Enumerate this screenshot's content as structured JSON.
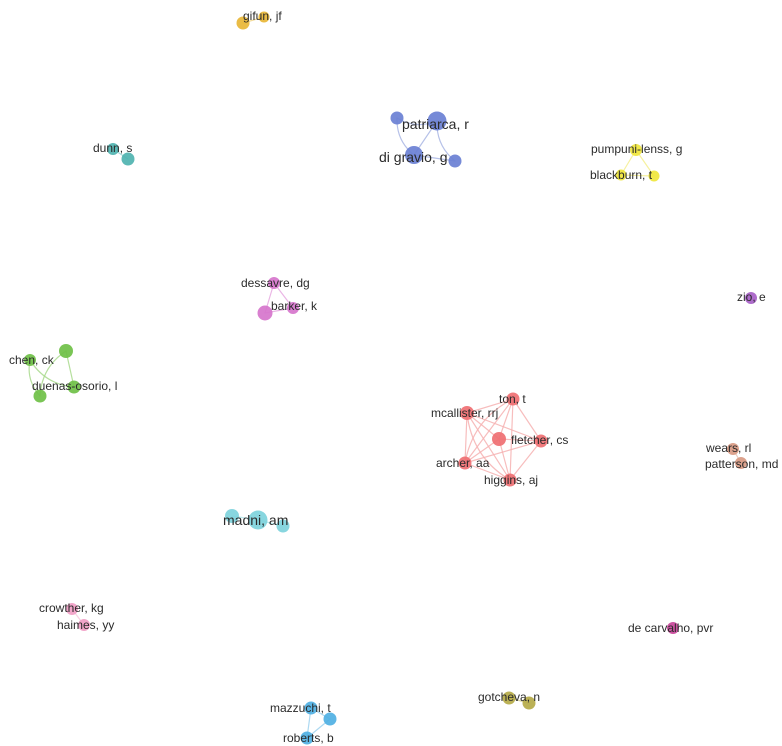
{
  "network": {
    "clusters": [
      {
        "id": "gifun",
        "color": "#e8b636",
        "edge_color": "#f1d58a",
        "labels": [
          "gifun, jf"
        ]
      },
      {
        "id": "patriarca",
        "color": "#6a80d4",
        "edge_color": "#a9b6e4",
        "labels": [
          "patriarca, r",
          "di gravio, g"
        ]
      },
      {
        "id": "dunn",
        "color": "#4fb3b0",
        "edge_color": "#9ad4d2",
        "labels": [
          "dunn, s"
        ]
      },
      {
        "id": "pumpuni",
        "color": "#f0e63c",
        "edge_color": "#f5ee8e",
        "labels": [
          "pumpuni-lenss, g",
          "blackburn, t"
        ]
      },
      {
        "id": "dessavre",
        "color": "#d675cc",
        "edge_color": "#e6a9e0",
        "labels": [
          "dessavre, dg",
          "barker, k"
        ]
      },
      {
        "id": "zio",
        "color": "#a760c7",
        "edge_color": "#c9a1dd",
        "labels": [
          "zio, e"
        ]
      },
      {
        "id": "chen",
        "color": "#6fc046",
        "edge_color": "#a8d98c",
        "labels": [
          "chen, ck",
          "duenas-osorio, l"
        ]
      },
      {
        "id": "mcallister",
        "color": "#ef6f72",
        "edge_color": "#f6b1b2",
        "labels": [
          "ton, t",
          "mcallister, rrj",
          "fletcher, cs",
          "archer, aa",
          "higgins, aj"
        ]
      },
      {
        "id": "wears",
        "color": "#d99a83",
        "edge_color": "#e8c3b5",
        "labels": [
          "wears, rl",
          "patterson, md"
        ]
      },
      {
        "id": "madni",
        "color": "#7ed3dc",
        "edge_color": "#b2e6eb",
        "labels": [
          "madni, am"
        ]
      },
      {
        "id": "crowther",
        "color": "#f19ec5",
        "edge_color": "#f7c9de",
        "labels": [
          "crowther, kg",
          "haimes, yy"
        ]
      },
      {
        "id": "decarvalho",
        "color": "#c9449a",
        "edge_color": "#e09bc7",
        "labels": [
          "de carvalho, pvr"
        ]
      },
      {
        "id": "gotcheva",
        "color": "#b5aa48",
        "edge_color": "#d6cf95",
        "labels": [
          "gotcheva, n"
        ]
      },
      {
        "id": "mazzuchi",
        "color": "#4fb0e3",
        "edge_color": "#9fd2ef",
        "labels": [
          "mazzuchi, t",
          "roberts, b"
        ]
      }
    ]
  }
}
